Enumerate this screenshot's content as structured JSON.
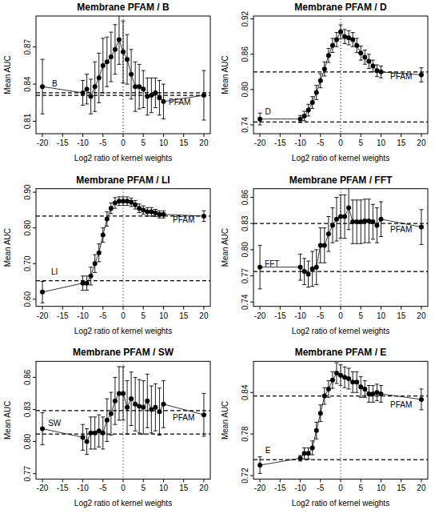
{
  "chart_data": [
    {
      "type": "line",
      "title": "Membrane PFAM / B",
      "x_label": "Log2 ratio of kernel weights",
      "y_label": "Mean AUC",
      "x": [
        -20,
        -10,
        -9,
        -8,
        -7,
        -6,
        -5,
        -4,
        -3,
        -2,
        -1,
        0,
        1,
        2,
        3,
        4,
        5,
        6,
        7,
        8,
        9,
        10,
        20
      ],
      "values": [
        0.838,
        0.833,
        0.836,
        0.83,
        0.838,
        0.845,
        0.855,
        0.858,
        0.862,
        0.868,
        0.876,
        0.866,
        0.86,
        0.848,
        0.838,
        0.838,
        0.836,
        0.83,
        0.831,
        0.833,
        0.829,
        0.826,
        0.831
      ],
      "errors": [
        0.022,
        0.01,
        0.012,
        0.014,
        0.02,
        0.02,
        0.022,
        0.02,
        0.02,
        0.02,
        0.02,
        0.025,
        0.02,
        0.02,
        0.02,
        0.018,
        0.015,
        0.015,
        0.014,
        0.012,
        0.014,
        0.014,
        0.02
      ],
      "xlim": [
        -21.6,
        21.6
      ],
      "xticks": [
        -20,
        -15,
        -10,
        -5,
        0,
        5,
        10,
        15,
        20
      ],
      "ylim": [
        0.8,
        0.895
      ],
      "yticks": [
        0.81,
        0.84,
        0.87
      ],
      "hlines": [
        0.833,
        0.831
      ],
      "vline": 0,
      "annotations": [
        {
          "text": "B",
          "x": -17,
          "y": 0.838
        },
        {
          "text": "PFAM",
          "x": 14,
          "y": 0.823
        }
      ]
    },
    {
      "type": "line",
      "title": "Membrane PFAM / D",
      "x_label": "Log2 ratio of kernel weights",
      "y_label": "Mean AUC",
      "x": [
        -20,
        -10,
        -9,
        -8,
        -7,
        -6,
        -5,
        -4,
        -3,
        -2,
        -1,
        0,
        1,
        2,
        3,
        4,
        5,
        6,
        7,
        8,
        9,
        10,
        20
      ],
      "values": [
        0.75,
        0.75,
        0.755,
        0.765,
        0.778,
        0.795,
        0.815,
        0.835,
        0.858,
        0.875,
        0.885,
        0.898,
        0.89,
        0.888,
        0.885,
        0.875,
        0.862,
        0.855,
        0.848,
        0.84,
        0.832,
        0.83,
        0.825
      ],
      "errors": [
        0.01,
        0.006,
        0.008,
        0.01,
        0.01,
        0.012,
        0.012,
        0.012,
        0.012,
        0.012,
        0.012,
        0.012,
        0.012,
        0.012,
        0.012,
        0.012,
        0.012,
        0.012,
        0.012,
        0.01,
        0.01,
        0.01,
        0.012
      ],
      "xlim": [
        -21.6,
        21.6
      ],
      "xticks": [
        -20,
        -15,
        -10,
        -5,
        0,
        5,
        10,
        15,
        20
      ],
      "ylim": [
        0.725,
        0.925
      ],
      "yticks": [
        0.74,
        {
          "value": 0.8,
          "label": "0.80"
        },
        0.86,
        0.92
      ],
      "hlines": [
        0.83,
        0.745
      ],
      "vline": 0,
      "annotations": [
        {
          "text": "D",
          "x": -18,
          "y": 0.757
        },
        {
          "text": "PFAM",
          "x": 15,
          "y": 0.817
        }
      ]
    },
    {
      "type": "line",
      "title": "Membrane PFAM / LI",
      "x_label": "Log2 ratio of kernel weights",
      "y_label": "Mean AUC",
      "x": [
        -20,
        -10,
        -9,
        -8,
        -7,
        -6,
        -5,
        -4,
        -3,
        -2,
        -1,
        0,
        1,
        2,
        3,
        4,
        5,
        6,
        7,
        8,
        9,
        10,
        20
      ],
      "values": [
        0.62,
        0.645,
        0.645,
        0.665,
        0.7,
        0.73,
        0.78,
        0.825,
        0.855,
        0.87,
        0.875,
        0.875,
        0.875,
        0.872,
        0.865,
        0.855,
        0.85,
        0.845,
        0.845,
        0.842,
        0.838,
        0.838,
        0.833
      ],
      "errors": [
        0.03,
        0.02,
        0.02,
        0.025,
        0.025,
        0.025,
        0.02,
        0.02,
        0.015,
        0.015,
        0.012,
        0.012,
        0.012,
        0.012,
        0.012,
        0.012,
        0.012,
        0.012,
        0.012,
        0.01,
        0.01,
        0.01,
        0.015
      ],
      "xlim": [
        -21.6,
        21.6
      ],
      "xticks": [
        -20,
        -15,
        -10,
        -5,
        0,
        5,
        10,
        15,
        20
      ],
      "ylim": [
        0.58,
        0.91
      ],
      "yticks": [
        {
          "value": 0.6,
          "label": "0.60"
        },
        {
          "value": 0.7,
          "label": "0.70"
        },
        {
          "value": 0.8,
          "label": "0.80"
        },
        {
          "value": 0.9,
          "label": "0.90"
        }
      ],
      "hlines": [
        0.833,
        0.652
      ],
      "vline": 0,
      "annotations": [
        {
          "text": "LI",
          "x": -17,
          "y": 0.668
        },
        {
          "text": "PFAM",
          "x": 15,
          "y": 0.815
        }
      ]
    },
    {
      "type": "line",
      "title": "Membrane PFAM / FFT",
      "x_label": "Log2 ratio of kernel weights",
      "y_label": "Mean AUC",
      "x": [
        -20,
        -10,
        -9,
        -8,
        -7,
        -6,
        -5,
        -4,
        -3,
        -2,
        -1,
        0,
        1,
        2,
        3,
        4,
        5,
        6,
        7,
        8,
        9,
        10,
        20
      ],
      "values": [
        0.78,
        0.78,
        0.775,
        0.772,
        0.778,
        0.78,
        0.805,
        0.805,
        0.818,
        0.828,
        0.835,
        0.838,
        0.838,
        0.848,
        0.832,
        0.832,
        0.832,
        0.833,
        0.833,
        0.832,
        0.828,
        0.835,
        0.826
      ],
      "errors": [
        0.025,
        0.015,
        0.015,
        0.015,
        0.02,
        0.02,
        0.02,
        0.02,
        0.02,
        0.02,
        0.025,
        0.025,
        0.025,
        0.025,
        0.025,
        0.025,
        0.025,
        0.025,
        0.025,
        0.02,
        0.02,
        0.02,
        0.02
      ],
      "xlim": [
        -21.6,
        21.6
      ],
      "xticks": [
        -20,
        -15,
        -10,
        -5,
        0,
        5,
        10,
        15,
        20
      ],
      "ylim": [
        0.735,
        0.87
      ],
      "yticks": [
        0.74,
        0.77,
        {
          "value": 0.8,
          "label": "0.80"
        },
        0.83,
        0.86
      ],
      "hlines": [
        0.83,
        0.775
      ],
      "vline": 0,
      "annotations": [
        {
          "text": "FFT",
          "x": -17,
          "y": 0.781
        },
        {
          "text": "PFAM",
          "x": 15,
          "y": 0.82
        }
      ]
    },
    {
      "type": "line",
      "title": "Membrane PFAM / SW",
      "x_label": "Log2 ratio of kernel weights",
      "y_label": "Mean AUC",
      "x": [
        -20,
        -10,
        -9,
        -8,
        -7,
        -6,
        -5,
        -4,
        -3,
        -2,
        -1,
        0,
        1,
        2,
        3,
        4,
        5,
        6,
        7,
        8,
        9,
        10,
        20
      ],
      "values": [
        0.812,
        0.804,
        0.8,
        0.808,
        0.808,
        0.81,
        0.808,
        0.82,
        0.826,
        0.838,
        0.845,
        0.845,
        0.832,
        0.84,
        0.835,
        0.833,
        0.832,
        0.838,
        0.83,
        0.832,
        0.828,
        0.835,
        0.825
      ],
      "errors": [
        0.015,
        0.012,
        0.012,
        0.015,
        0.015,
        0.015,
        0.015,
        0.02,
        0.02,
        0.022,
        0.025,
        0.025,
        0.025,
        0.025,
        0.025,
        0.025,
        0.025,
        0.025,
        0.022,
        0.022,
        0.022,
        0.022,
        0.02
      ],
      "xlim": [
        -21.6,
        21.6
      ],
      "xticks": [
        -20,
        -15,
        -10,
        -5,
        0,
        5,
        10,
        15,
        20
      ],
      "ylim": [
        0.765,
        0.875
      ],
      "yticks": [
        0.77,
        {
          "value": 0.8,
          "label": "0.80"
        },
        0.83,
        0.86
      ],
      "hlines": [
        0.829,
        0.807
      ],
      "vline": 0,
      "annotations": [
        {
          "text": "SW",
          "x": -17,
          "y": 0.815
        },
        {
          "text": "PFAM",
          "x": 15,
          "y": 0.82
        }
      ]
    },
    {
      "type": "line",
      "title": "Membrane PFAM / E",
      "x_label": "Log2 ratio of kernel weights",
      "y_label": "Mean AUC",
      "x": [
        -20,
        -10,
        -9,
        -8,
        -7,
        -6,
        -5,
        -4,
        -3,
        -2,
        -1,
        0,
        1,
        2,
        3,
        4,
        5,
        6,
        7,
        8,
        9,
        10,
        20
      ],
      "values": [
        0.735,
        0.745,
        0.752,
        0.752,
        0.76,
        0.785,
        0.81,
        0.835,
        0.845,
        0.858,
        0.868,
        0.865,
        0.862,
        0.86,
        0.855,
        0.855,
        0.848,
        0.845,
        0.838,
        0.838,
        0.84,
        0.838,
        0.83
      ],
      "errors": [
        0.012,
        0.004,
        0.008,
        0.008,
        0.01,
        0.012,
        0.012,
        0.012,
        0.012,
        0.012,
        0.015,
        0.015,
        0.015,
        0.015,
        0.015,
        0.015,
        0.015,
        0.012,
        0.012,
        0.012,
        0.012,
        0.012,
        0.015
      ],
      "xlim": [
        -21.6,
        21.6
      ],
      "xticks": [
        -20,
        -15,
        -10,
        -5,
        0,
        5,
        10,
        15,
        20
      ],
      "ylim": [
        0.715,
        0.885
      ],
      "yticks": [
        0.72,
        0.78,
        0.84
      ],
      "hlines": [
        0.835,
        0.743
      ],
      "vline": 0,
      "annotations": [
        {
          "text": "E",
          "x": -18,
          "y": 0.752
        },
        {
          "text": "PFAM",
          "x": 15,
          "y": 0.818
        }
      ]
    }
  ]
}
